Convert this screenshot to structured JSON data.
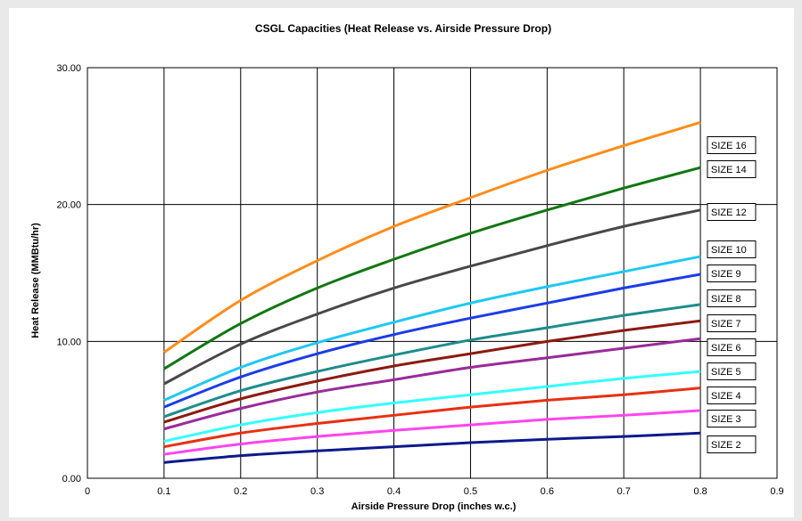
{
  "chart_data": {
    "type": "line",
    "title": "CSGL Capacities (Heat Release vs. Airside Pressure Drop)",
    "xlabel": "Airside Pressure Drop (inches w.c.)",
    "ylabel": "Heat Release (MMBtu/hr)",
    "xlim": [
      0,
      0.9
    ],
    "ylim": [
      0,
      30
    ],
    "x_ticks": [
      "0",
      "0.1",
      "0.2",
      "0.3",
      "0.4",
      "0.5",
      "0.6",
      "0.7",
      "0.8",
      "0.9"
    ],
    "y_ticks": [
      "0.00",
      "10.00",
      "20.00",
      "30.00"
    ],
    "grid": true,
    "legend_position": "right",
    "x": [
      0.1,
      0.2,
      0.3,
      0.4,
      0.5,
      0.6,
      0.7,
      0.8
    ],
    "series": [
      {
        "name": "SIZE 16",
        "color": "#ff8c1a",
        "values": [
          9.2,
          13.0,
          15.9,
          18.4,
          20.5,
          22.5,
          24.3,
          26.0
        ]
      },
      {
        "name": "SIZE 14",
        "color": "#117711",
        "values": [
          8.0,
          11.3,
          13.9,
          16.0,
          17.9,
          19.6,
          21.2,
          22.7
        ]
      },
      {
        "name": "SIZE 12",
        "color": "#484848",
        "values": [
          6.9,
          9.8,
          12.0,
          13.9,
          15.5,
          17.0,
          18.4,
          19.6
        ]
      },
      {
        "name": "SIZE 10",
        "color": "#1ec8f5",
        "values": [
          5.7,
          8.1,
          9.9,
          11.4,
          12.8,
          14.0,
          15.1,
          16.2
        ]
      },
      {
        "name": "SIZE 9",
        "color": "#1c3ce8",
        "values": [
          5.2,
          7.4,
          9.1,
          10.5,
          11.7,
          12.8,
          13.9,
          14.9
        ]
      },
      {
        "name": "SIZE 8",
        "color": "#1e8c8c",
        "values": [
          4.5,
          6.4,
          7.8,
          9.0,
          10.1,
          11.0,
          11.9,
          12.7
        ]
      },
      {
        "name": "SIZE 7",
        "color": "#8c1a10",
        "values": [
          4.1,
          5.8,
          7.1,
          8.2,
          9.1,
          10.0,
          10.8,
          11.5
        ]
      },
      {
        "name": "SIZE 6",
        "color": "#9a2a9a",
        "values": [
          3.6,
          5.1,
          6.3,
          7.2,
          8.1,
          8.8,
          9.5,
          10.2
        ]
      },
      {
        "name": "SIZE 5",
        "color": "#33ffff",
        "values": [
          2.7,
          3.9,
          4.8,
          5.5,
          6.1,
          6.7,
          7.3,
          7.8
        ]
      },
      {
        "name": "SIZE 4",
        "color": "#e83010",
        "values": [
          2.3,
          3.3,
          4.0,
          4.6,
          5.2,
          5.7,
          6.1,
          6.6
        ]
      },
      {
        "name": "SIZE 3",
        "color": "#ff44ee",
        "values": [
          1.75,
          2.5,
          3.05,
          3.5,
          3.9,
          4.3,
          4.6,
          4.95
        ]
      },
      {
        "name": "SIZE 2",
        "color": "#0c1a8c",
        "values": [
          1.15,
          1.65,
          2.0,
          2.3,
          2.6,
          2.85,
          3.05,
          3.3
        ]
      }
    ],
    "legend_order": [
      "SIZE 16",
      "SIZE 14",
      "SIZE 12",
      "SIZE 10",
      "SIZE 9",
      "SIZE 8",
      "SIZE 7",
      "SIZE 6",
      "SIZE 5",
      "SIZE 4",
      "SIZE 3",
      "SIZE 2"
    ]
  }
}
